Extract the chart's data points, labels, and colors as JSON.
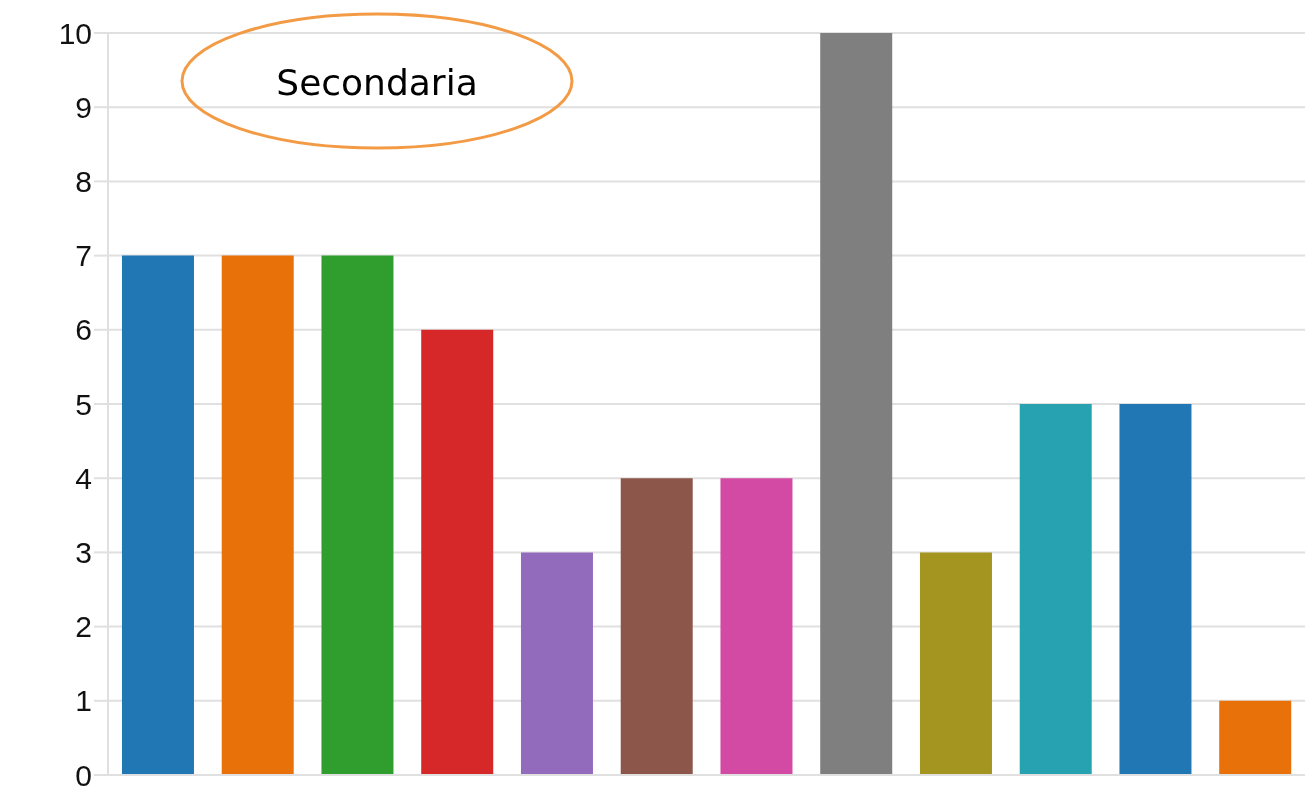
{
  "chart_data": {
    "type": "bar",
    "categories": [
      null,
      null,
      null,
      null,
      null,
      null,
      null,
      null,
      null,
      null,
      null,
      null
    ],
    "values": [
      7,
      7,
      7,
      6,
      3,
      4,
      4,
      10,
      3,
      5,
      5,
      1
    ],
    "colors": [
      "#2077b4",
      "#e8710a",
      "#2f9e2f",
      "#d62828",
      "#936bbd",
      "#8c564b",
      "#d34aa5",
      "#7f7f7f",
      "#a39520",
      "#27a2b0",
      "#2077b4",
      "#e8710a"
    ],
    "ylim": [
      0,
      10
    ],
    "yticks": [
      0,
      1,
      2,
      3,
      4,
      5,
      6,
      7,
      8,
      9,
      10
    ],
    "grid": "y",
    "annotations": [
      "Secondaria"
    ]
  }
}
